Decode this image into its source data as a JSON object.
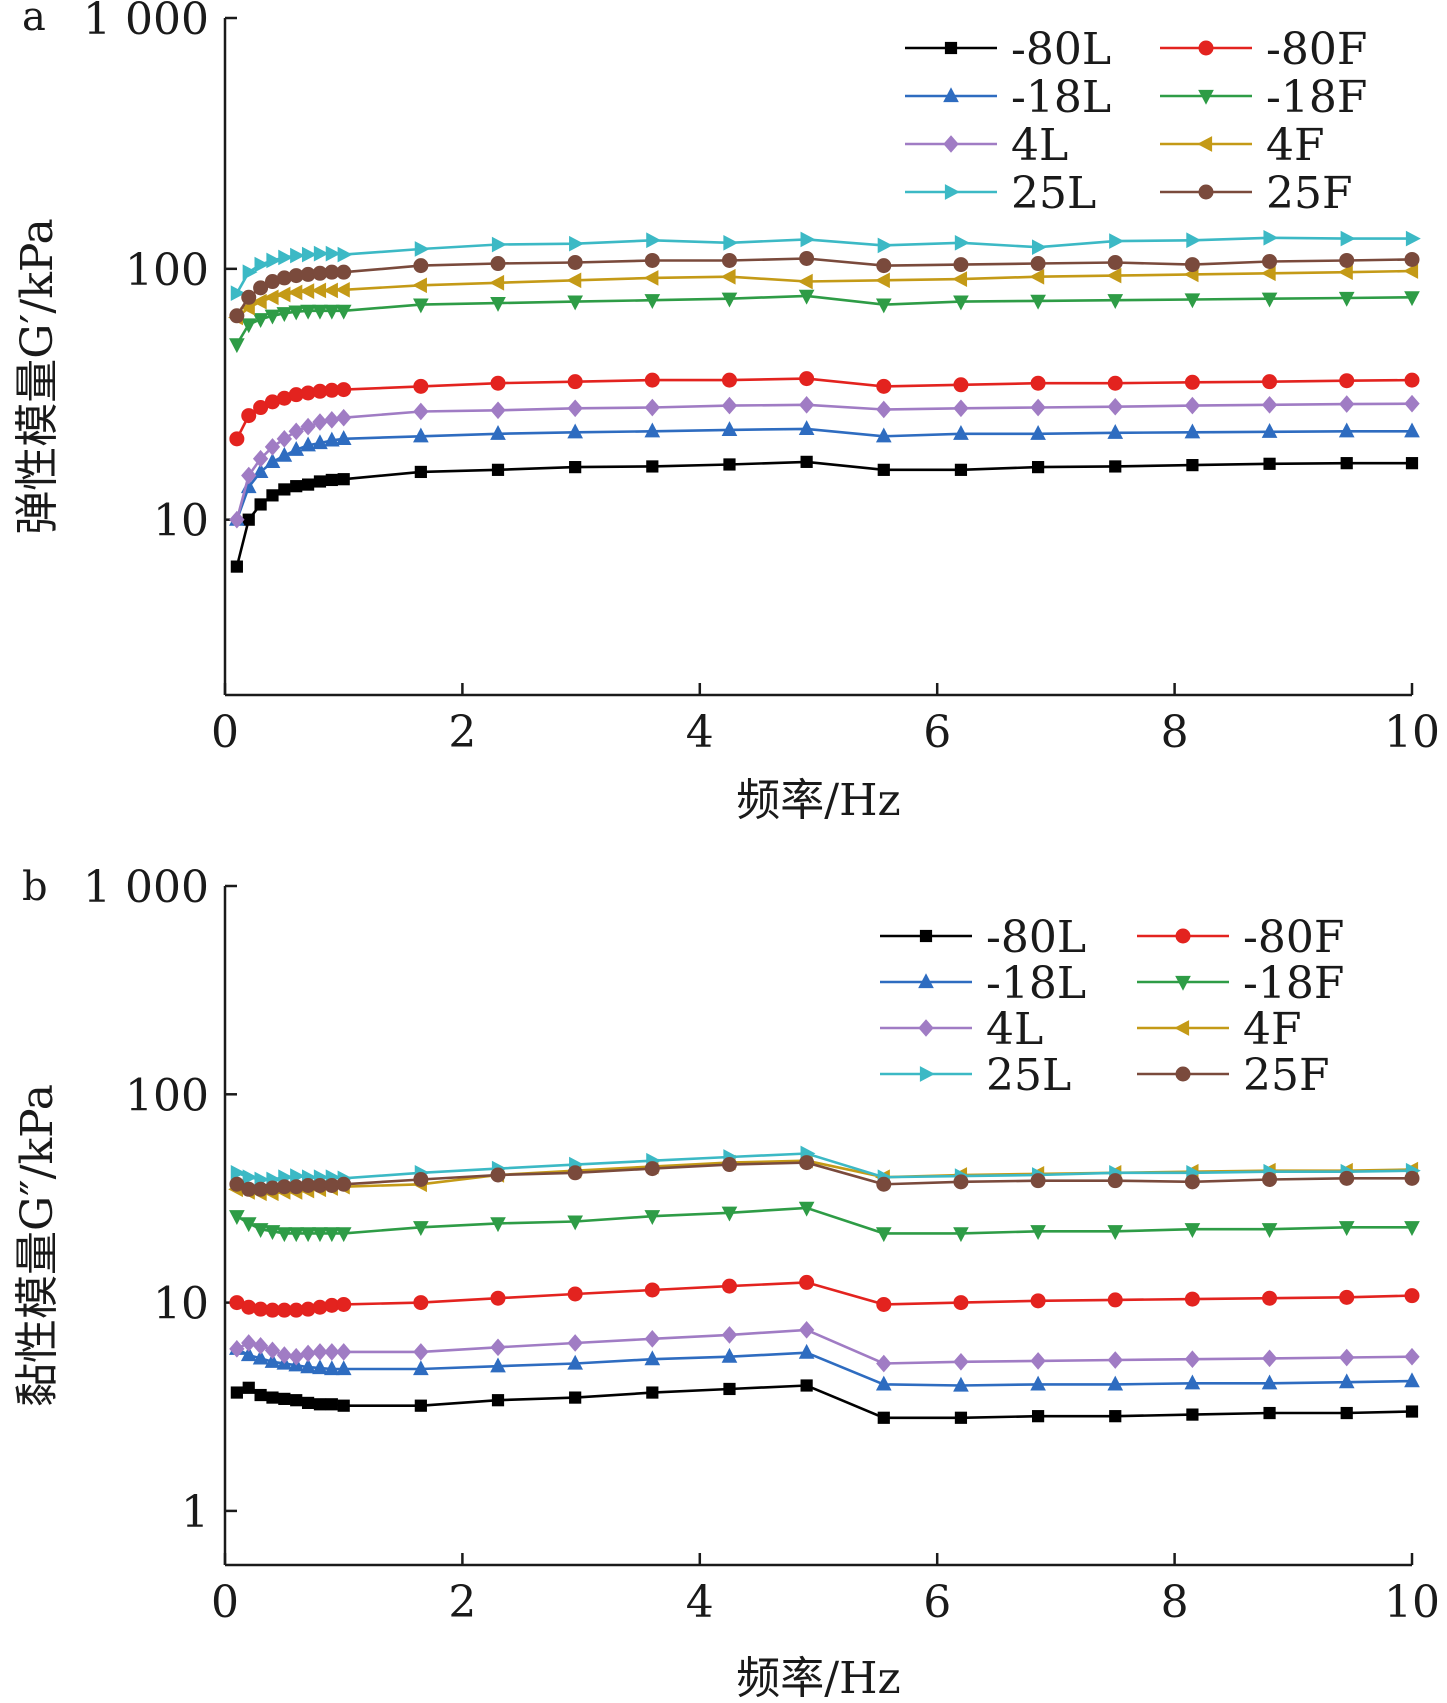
{
  "chart_data": [
    {
      "type": "line",
      "panel_label": "a",
      "ylabel": "弹性模量G′/kPa",
      "xlabel": "频率/Hz",
      "xlim": [
        0,
        10
      ],
      "ylim": [
        2,
        1000
      ],
      "yscale": "log",
      "x_ticks": [
        "0",
        "2",
        "4",
        "6",
        "8",
        "10"
      ],
      "y_ticks": [
        "10",
        "100",
        "1 000"
      ],
      "legend_position": "top-right",
      "x": [
        0.1,
        0.2,
        0.3,
        0.4,
        0.5,
        0.6,
        0.7,
        0.8,
        0.9,
        1.0,
        1.65,
        2.3,
        2.95,
        3.6,
        4.25,
        4.9,
        5.55,
        6.2,
        6.85,
        7.5,
        8.15,
        8.8,
        9.45,
        10.0
      ],
      "series": [
        {
          "name": "-80L",
          "color": "#000000",
          "marker": "square",
          "values": [
            6.5,
            10,
            11.5,
            12.5,
            13.2,
            13.6,
            13.8,
            14.2,
            14.4,
            14.5,
            15.5,
            15.8,
            16.2,
            16.3,
            16.6,
            17.0,
            15.8,
            15.8,
            16.2,
            16.3,
            16.5,
            16.7,
            16.8,
            16.8
          ]
        },
        {
          "name": "-80F",
          "color": "#e3231f",
          "marker": "circle",
          "values": [
            21,
            26,
            28,
            29.5,
            30.5,
            31.5,
            32,
            32.5,
            32.8,
            33,
            34,
            35,
            35.5,
            36,
            36,
            36.5,
            34,
            34.5,
            35,
            35,
            35.3,
            35.5,
            35.8,
            36
          ]
        },
        {
          "name": "-18L",
          "color": "#2e6cc0",
          "marker": "triangle-up",
          "values": [
            10,
            13.5,
            15.5,
            17,
            18,
            19,
            19.8,
            20.2,
            20.7,
            21,
            21.5,
            22,
            22.3,
            22.5,
            22.8,
            23,
            21.5,
            22,
            22,
            22.2,
            22.3,
            22.4,
            22.5,
            22.5
          ]
        },
        {
          "name": "-18F",
          "color": "#2e9c46",
          "marker": "triangle-down",
          "values": [
            50,
            60,
            63,
            65,
            66.5,
            67.5,
            68,
            68,
            68,
            68,
            72,
            73,
            74,
            75,
            76,
            78,
            72,
            74,
            74.5,
            75,
            75.5,
            76,
            76.5,
            77
          ]
        },
        {
          "name": "4L",
          "color": "#a07cc4",
          "marker": "diamond",
          "values": [
            10,
            15,
            17.5,
            19.5,
            21,
            22.5,
            23.5,
            24.5,
            25,
            25.5,
            27,
            27.3,
            27.8,
            28,
            28.5,
            28.7,
            27.5,
            27.8,
            28,
            28.2,
            28.5,
            28.7,
            28.9,
            29
          ]
        },
        {
          "name": "4F",
          "color": "#c49a17",
          "marker": "triangle-left",
          "values": [
            64,
            70,
            74,
            77,
            79,
            80.5,
            81.5,
            82,
            82,
            82.5,
            86,
            88,
            90,
            92,
            93,
            89,
            90,
            91,
            93,
            94,
            95,
            96,
            97,
            98
          ]
        },
        {
          "name": "25L",
          "color": "#3cb9c5",
          "marker": "triangle-right",
          "values": [
            80,
            97,
            104,
            108,
            111,
            113,
            114,
            115,
            115,
            114,
            120,
            125,
            126,
            130,
            127,
            131,
            124,
            127,
            122,
            129,
            130,
            133,
            132,
            132
          ]
        },
        {
          "name": "25F",
          "color": "#7a4a3c",
          "marker": "circle",
          "values": [
            65,
            77,
            84,
            89,
            92,
            94,
            95,
            96,
            97,
            97,
            103,
            105,
            106,
            108,
            108,
            110,
            103,
            104,
            105,
            106,
            104,
            107,
            108,
            109
          ]
        }
      ]
    },
    {
      "type": "line",
      "panel_label": "b",
      "ylabel": "黏性模量G″/kPa",
      "xlabel": "频率/Hz",
      "xlim": [
        0,
        10
      ],
      "ylim": [
        0.55,
        1000
      ],
      "yscale": "log",
      "x_ticks": [
        "0",
        "2",
        "4",
        "6",
        "8",
        "10"
      ],
      "y_ticks": [
        "1",
        "10",
        "100",
        "1 000"
      ],
      "legend_position": "top-right",
      "x": [
        0.1,
        0.2,
        0.3,
        0.4,
        0.5,
        0.6,
        0.7,
        0.8,
        0.9,
        1.0,
        1.65,
        2.3,
        2.95,
        3.6,
        4.25,
        4.9,
        5.55,
        6.2,
        6.85,
        7.5,
        8.15,
        8.8,
        9.45,
        10.0
      ],
      "series": [
        {
          "name": "-80L",
          "color": "#000000",
          "marker": "square",
          "values": [
            3.7,
            3.9,
            3.6,
            3.5,
            3.45,
            3.4,
            3.3,
            3.25,
            3.25,
            3.2,
            3.2,
            3.4,
            3.5,
            3.7,
            3.85,
            4.0,
            2.8,
            2.8,
            2.85,
            2.85,
            2.9,
            2.95,
            2.95,
            3.0
          ]
        },
        {
          "name": "-80F",
          "color": "#e3231f",
          "marker": "circle",
          "values": [
            10,
            9.5,
            9.3,
            9.2,
            9.2,
            9.2,
            9.3,
            9.5,
            9.7,
            9.8,
            10,
            10.5,
            11,
            11.5,
            12,
            12.5,
            9.8,
            10,
            10.2,
            10.3,
            10.4,
            10.5,
            10.6,
            10.8
          ]
        },
        {
          "name": "-18L",
          "color": "#2e6cc0",
          "marker": "triangle-up",
          "values": [
            6.0,
            5.6,
            5.4,
            5.2,
            5.1,
            5.0,
            4.9,
            4.85,
            4.8,
            4.8,
            4.8,
            4.95,
            5.1,
            5.35,
            5.5,
            5.75,
            4.05,
            4.0,
            4.05,
            4.05,
            4.1,
            4.1,
            4.15,
            4.2
          ]
        },
        {
          "name": "-18F",
          "color": "#2e9c46",
          "marker": "triangle-down",
          "values": [
            26,
            24,
            22.5,
            22,
            21.5,
            21.5,
            21.5,
            21.5,
            21.5,
            21.5,
            23,
            24,
            24.5,
            26,
            27,
            28.5,
            21.5,
            21.5,
            22,
            22,
            22.5,
            22.5,
            23,
            23
          ]
        },
        {
          "name": "4L",
          "color": "#a07cc4",
          "marker": "diamond",
          "values": [
            6.0,
            6.4,
            6.2,
            5.9,
            5.6,
            5.5,
            5.7,
            5.8,
            5.8,
            5.8,
            5.8,
            6.1,
            6.4,
            6.7,
            7.0,
            7.4,
            5.1,
            5.2,
            5.25,
            5.3,
            5.35,
            5.4,
            5.45,
            5.5
          ]
        },
        {
          "name": "4F",
          "color": "#c49a17",
          "marker": "triangle-left",
          "values": [
            35,
            34,
            33.5,
            33.5,
            34,
            34,
            34.5,
            35,
            35.5,
            36,
            37,
            41,
            43,
            45,
            47,
            48,
            40,
            41,
            41.5,
            42,
            42.5,
            43,
            43,
            43.5
          ]
        },
        {
          "name": "25L",
          "color": "#3cb9c5",
          "marker": "triangle-right",
          "values": [
            42,
            40,
            39,
            39,
            40,
            40.5,
            40,
            40,
            40,
            39.5,
            42,
            44,
            46,
            48,
            50,
            52,
            40,
            40.5,
            41,
            42,
            42,
            42.5,
            42.5,
            43
          ]
        },
        {
          "name": "25F",
          "color": "#7a4a3c",
          "marker": "circle",
          "values": [
            37,
            35,
            35,
            35.5,
            36,
            36,
            36.5,
            36.5,
            36.5,
            37,
            39,
            41,
            42,
            44,
            46,
            47,
            37,
            38,
            38.5,
            38.5,
            38,
            39,
            39.5,
            39.5
          ]
        }
      ]
    }
  ]
}
